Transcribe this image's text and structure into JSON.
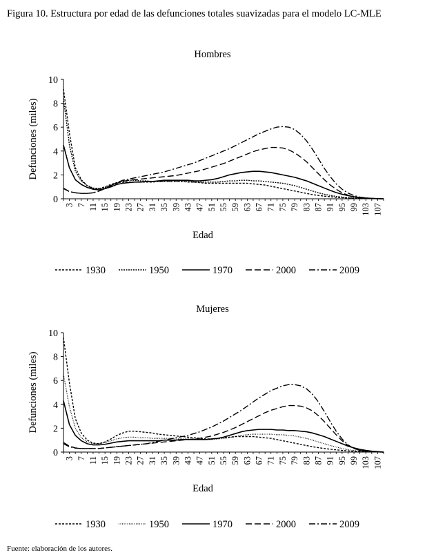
{
  "figure_title": "Figura 10. Estructura por edad de las defunciones totales suavizadas para el modelo LC-MLE",
  "footnote": "Fuente: elaboración de los autores.",
  "line_color": "#000000",
  "chart_data": [
    {
      "type": "line",
      "title": "Hombres",
      "xlabel": "Edad",
      "ylabel": "Defunciones (miles)",
      "ylim": [
        0,
        10
      ],
      "yticks": [
        "0",
        "2",
        "4",
        "6",
        "8",
        "10"
      ],
      "xticks": [
        "3",
        "7",
        "11",
        "15",
        "19",
        "23",
        "27",
        "31",
        "35",
        "39",
        "43",
        "47",
        "51",
        "55",
        "59",
        "63",
        "67",
        "71",
        "75",
        "79",
        "83",
        "87",
        "91",
        "95",
        "99",
        "103",
        "107"
      ],
      "x": [
        1,
        3,
        5,
        7,
        9,
        11,
        13,
        15,
        17,
        19,
        21,
        23,
        25,
        27,
        29,
        31,
        33,
        35,
        37,
        39,
        41,
        43,
        45,
        47,
        49,
        51,
        53,
        55,
        57,
        59,
        61,
        63,
        65,
        67,
        69,
        71,
        73,
        75,
        77,
        79,
        81,
        83,
        85,
        87,
        89,
        91,
        93,
        95,
        97,
        99,
        101,
        103,
        105,
        107,
        109
      ],
      "series": [
        {
          "name": "1930",
          "dash": "3,2",
          "width": 1.4,
          "values": [
            9.2,
            5.5,
            2.6,
            1.6,
            1.1,
            0.85,
            0.85,
            1.0,
            1.2,
            1.35,
            1.4,
            1.4,
            1.4,
            1.4,
            1.4,
            1.4,
            1.45,
            1.45,
            1.45,
            1.45,
            1.45,
            1.4,
            1.4,
            1.35,
            1.3,
            1.3,
            1.3,
            1.3,
            1.3,
            1.3,
            1.3,
            1.3,
            1.25,
            1.2,
            1.15,
            1.05,
            0.95,
            0.85,
            0.75,
            0.65,
            0.55,
            0.45,
            0.35,
            0.28,
            0.22,
            0.17,
            0.12,
            0.09,
            0.06,
            0.04,
            0.03,
            0.02,
            0.01,
            0.0,
            0.0
          ]
        },
        {
          "name": "1950",
          "dash": "2,1.5",
          "width": 1.4,
          "values": [
            8.4,
            4.5,
            2.3,
            1.5,
            1.1,
            0.9,
            0.85,
            0.95,
            1.15,
            1.35,
            1.5,
            1.55,
            1.55,
            1.5,
            1.5,
            1.45,
            1.45,
            1.45,
            1.45,
            1.45,
            1.45,
            1.45,
            1.4,
            1.4,
            1.4,
            1.4,
            1.4,
            1.45,
            1.5,
            1.5,
            1.55,
            1.55,
            1.5,
            1.5,
            1.45,
            1.4,
            1.35,
            1.3,
            1.2,
            1.1,
            0.95,
            0.8,
            0.65,
            0.5,
            0.38,
            0.28,
            0.2,
            0.14,
            0.09,
            0.06,
            0.04,
            0.03,
            0.02,
            0.01,
            0.0
          ]
        },
        {
          "name": "1970",
          "dash": "",
          "width": 1.6,
          "values": [
            4.5,
            2.6,
            1.6,
            1.2,
            0.95,
            0.8,
            0.75,
            0.85,
            1.0,
            1.2,
            1.3,
            1.35,
            1.4,
            1.4,
            1.45,
            1.45,
            1.5,
            1.55,
            1.55,
            1.55,
            1.55,
            1.55,
            1.5,
            1.5,
            1.55,
            1.6,
            1.7,
            1.85,
            2.0,
            2.1,
            2.2,
            2.25,
            2.3,
            2.3,
            2.25,
            2.2,
            2.1,
            2.0,
            1.9,
            1.8,
            1.65,
            1.5,
            1.3,
            1.1,
            0.9,
            0.7,
            0.52,
            0.38,
            0.26,
            0.17,
            0.1,
            0.06,
            0.03,
            0.01,
            0.0
          ]
        },
        {
          "name": "2000",
          "dash": "9,4",
          "width": 1.4,
          "values": [
            0.9,
            0.6,
            0.5,
            0.45,
            0.45,
            0.5,
            0.65,
            0.85,
            1.1,
            1.3,
            1.45,
            1.55,
            1.6,
            1.65,
            1.7,
            1.75,
            1.8,
            1.85,
            1.9,
            1.95,
            2.05,
            2.15,
            2.25,
            2.35,
            2.5,
            2.65,
            2.8,
            2.95,
            3.15,
            3.35,
            3.55,
            3.75,
            3.95,
            4.1,
            4.2,
            4.3,
            4.3,
            4.25,
            4.1,
            3.85,
            3.5,
            3.1,
            2.6,
            2.1,
            1.6,
            1.15,
            0.8,
            0.5,
            0.3,
            0.17,
            0.09,
            0.05,
            0.02,
            0.01,
            0.0
          ]
        },
        {
          "name": "2009",
          "dash": "9,3,2,3",
          "width": 1.4,
          "values": [
            0.85,
            0.6,
            0.5,
            0.45,
            0.45,
            0.5,
            0.65,
            0.85,
            1.1,
            1.35,
            1.55,
            1.65,
            1.75,
            1.85,
            1.95,
            2.05,
            2.15,
            2.25,
            2.4,
            2.55,
            2.7,
            2.85,
            3.0,
            3.2,
            3.4,
            3.6,
            3.8,
            4.0,
            4.2,
            4.45,
            4.7,
            4.95,
            5.2,
            5.45,
            5.65,
            5.85,
            6.0,
            6.05,
            6.0,
            5.8,
            5.4,
            4.85,
            4.15,
            3.35,
            2.55,
            1.85,
            1.25,
            0.8,
            0.48,
            0.27,
            0.14,
            0.07,
            0.03,
            0.01,
            0.0
          ]
        }
      ]
    },
    {
      "type": "line",
      "title": "Mujeres",
      "xlabel": "Edad",
      "ylabel": "Defunciones (miles)",
      "ylim": [
        0,
        10
      ],
      "yticks": [
        "0",
        "2",
        "4",
        "6",
        "8",
        "10"
      ],
      "xticks": [
        "3",
        "7",
        "11",
        "15",
        "19",
        "23",
        "27",
        "31",
        "35",
        "39",
        "43",
        "47",
        "51",
        "55",
        "59",
        "63",
        "67",
        "71",
        "75",
        "79",
        "83",
        "87",
        "91",
        "95",
        "99",
        "103",
        "107"
      ],
      "x": [
        1,
        3,
        5,
        7,
        9,
        11,
        13,
        15,
        17,
        19,
        21,
        23,
        25,
        27,
        29,
        31,
        33,
        35,
        37,
        39,
        41,
        43,
        45,
        47,
        49,
        51,
        53,
        55,
        57,
        59,
        61,
        63,
        65,
        67,
        69,
        71,
        73,
        75,
        77,
        79,
        81,
        83,
        85,
        87,
        89,
        91,
        93,
        95,
        97,
        99,
        101,
        103,
        105,
        107,
        109
      ],
      "series": [
        {
          "name": "1930",
          "dash": "3,2",
          "width": 1.4,
          "values": [
            9.6,
            5.8,
            2.8,
            1.6,
            1.0,
            0.75,
            0.7,
            0.85,
            1.1,
            1.4,
            1.6,
            1.75,
            1.75,
            1.7,
            1.65,
            1.6,
            1.5,
            1.45,
            1.4,
            1.35,
            1.3,
            1.25,
            1.2,
            1.15,
            1.1,
            1.1,
            1.15,
            1.2,
            1.25,
            1.3,
            1.3,
            1.3,
            1.3,
            1.25,
            1.2,
            1.15,
            1.05,
            0.95,
            0.85,
            0.75,
            0.65,
            0.55,
            0.45,
            0.37,
            0.3,
            0.24,
            0.19,
            0.14,
            0.1,
            0.07,
            0.05,
            0.03,
            0.02,
            0.01,
            0.0
          ]
        },
        {
          "name": "1950",
          "dash": "1,1.5",
          "width": 1.2,
          "values": [
            6.5,
            3.8,
            2.0,
            1.2,
            0.85,
            0.7,
            0.7,
            0.8,
            0.95,
            1.1,
            1.2,
            1.25,
            1.25,
            1.2,
            1.2,
            1.15,
            1.15,
            1.15,
            1.15,
            1.1,
            1.1,
            1.1,
            1.1,
            1.05,
            1.05,
            1.05,
            1.1,
            1.15,
            1.2,
            1.3,
            1.4,
            1.45,
            1.5,
            1.5,
            1.5,
            1.5,
            1.45,
            1.45,
            1.4,
            1.35,
            1.25,
            1.15,
            1.0,
            0.85,
            0.7,
            0.55,
            0.42,
            0.3,
            0.2,
            0.13,
            0.08,
            0.05,
            0.03,
            0.01,
            0.0
          ]
        },
        {
          "name": "1970",
          "dash": "",
          "width": 1.6,
          "values": [
            4.3,
            2.3,
            1.4,
            0.95,
            0.7,
            0.6,
            0.6,
            0.65,
            0.75,
            0.85,
            0.9,
            0.95,
            0.95,
            0.95,
            0.95,
            0.95,
            0.95,
            1.0,
            1.0,
            1.0,
            1.05,
            1.05,
            1.05,
            1.05,
            1.05,
            1.1,
            1.15,
            1.25,
            1.4,
            1.55,
            1.7,
            1.8,
            1.85,
            1.9,
            1.9,
            1.9,
            1.85,
            1.85,
            1.8,
            1.8,
            1.75,
            1.7,
            1.6,
            1.45,
            1.3,
            1.1,
            0.9,
            0.7,
            0.5,
            0.35,
            0.23,
            0.14,
            0.08,
            0.04,
            0.0
          ]
        },
        {
          "name": "2000",
          "dash": "9,4",
          "width": 1.4,
          "values": [
            0.8,
            0.5,
            0.35,
            0.3,
            0.3,
            0.3,
            0.3,
            0.35,
            0.4,
            0.45,
            0.5,
            0.55,
            0.6,
            0.65,
            0.7,
            0.75,
            0.8,
            0.85,
            0.9,
            0.95,
            1.0,
            1.05,
            1.1,
            1.15,
            1.25,
            1.35,
            1.5,
            1.65,
            1.85,
            2.05,
            2.3,
            2.55,
            2.8,
            3.05,
            3.3,
            3.5,
            3.65,
            3.8,
            3.9,
            3.9,
            3.85,
            3.7,
            3.45,
            3.05,
            2.55,
            2.0,
            1.45,
            0.95,
            0.55,
            0.3,
            0.15,
            0.07,
            0.03,
            0.01,
            0.0
          ]
        },
        {
          "name": "2009",
          "dash": "9,3,2,3",
          "width": 1.4,
          "values": [
            0.7,
            0.45,
            0.33,
            0.3,
            0.3,
            0.3,
            0.3,
            0.35,
            0.4,
            0.45,
            0.5,
            0.55,
            0.6,
            0.65,
            0.7,
            0.8,
            0.9,
            1.0,
            1.1,
            1.2,
            1.3,
            1.4,
            1.55,
            1.7,
            1.9,
            2.1,
            2.35,
            2.6,
            2.9,
            3.2,
            3.5,
            3.85,
            4.2,
            4.55,
            4.85,
            5.15,
            5.35,
            5.55,
            5.65,
            5.65,
            5.55,
            5.3,
            4.85,
            4.2,
            3.4,
            2.55,
            1.75,
            1.1,
            0.6,
            0.3,
            0.14,
            0.06,
            0.02,
            0.01,
            0.0
          ]
        }
      ]
    }
  ]
}
